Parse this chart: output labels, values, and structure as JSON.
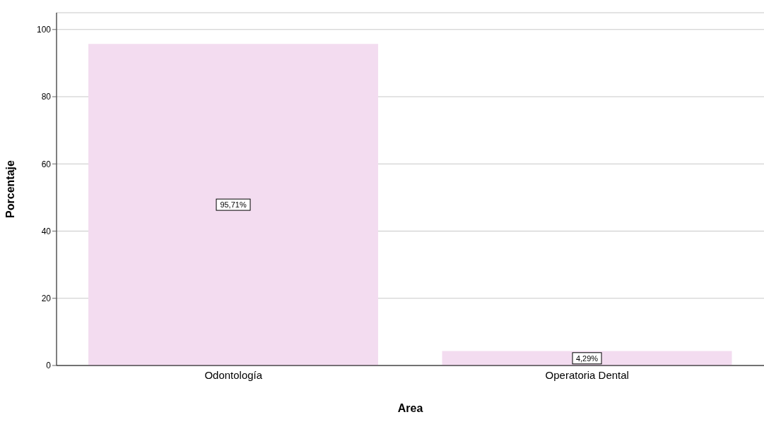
{
  "chart_data": {
    "type": "bar",
    "xlabel": "Area",
    "ylabel": "Porcentaje",
    "categories": [
      "Odontología",
      "Operatoria Dental"
    ],
    "values": [
      95.71,
      4.29
    ],
    "value_labels": [
      "95,71%",
      "4,29%"
    ],
    "color": "#f3dcf0",
    "ylim": [
      0,
      105
    ],
    "yticks": [
      0,
      20,
      40,
      60,
      80,
      100
    ],
    "grid": "y"
  }
}
